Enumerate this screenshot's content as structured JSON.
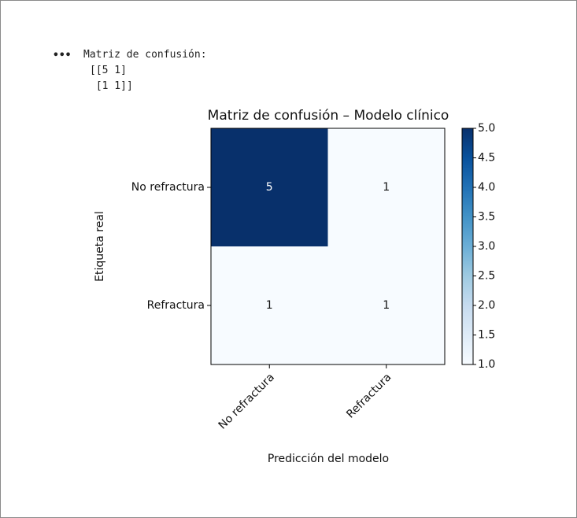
{
  "output": {
    "prompt": "•••",
    "lines": [
      "Matriz de confusión:",
      "[[5 1]",
      " [1 1]]"
    ]
  },
  "chart_data": {
    "type": "heatmap",
    "title": "Matriz de confusión – Modelo clínico",
    "x_label": "Predicción del modelo",
    "y_label": "Etiqueta real",
    "x_categories": [
      "No refractura",
      "Refractura"
    ],
    "y_categories": [
      "No refractura",
      "Refractura"
    ],
    "values": [
      [
        5,
        1
      ],
      [
        1,
        1
      ]
    ],
    "colormap": "Blues",
    "clim": [
      1,
      5
    ],
    "cticks": [
      {
        "value": 1,
        "label": "1.0"
      },
      {
        "value": 1.5,
        "label": "1.5"
      },
      {
        "value": 2,
        "label": "2.0"
      },
      {
        "value": 2.5,
        "label": "2.5"
      },
      {
        "value": 3,
        "label": "3.0"
      },
      {
        "value": 3.5,
        "label": "3.5"
      },
      {
        "value": 4,
        "label": "4.0"
      },
      {
        "value": 4.5,
        "label": "4.5"
      },
      {
        "value": 5,
        "label": "5.0"
      }
    ]
  }
}
